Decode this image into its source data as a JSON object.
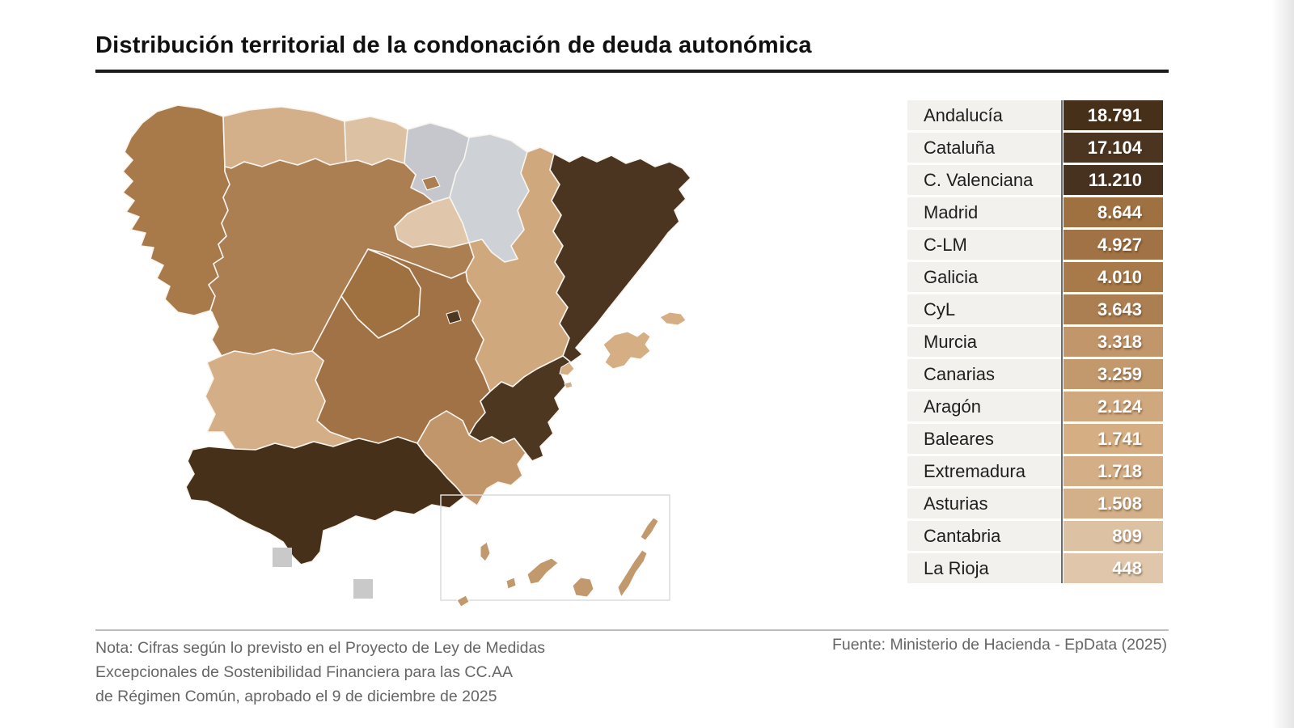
{
  "title": "Distribución territorial de la condonación de deuda autonómica",
  "note_lines": [
    "Nota: Cifras según lo previsto en el Proyecto de Ley de Medidas",
    "Excepcionales de Sostenibilidad Financiera para las CC.AA",
    "de Régimen Común, aprobado el 9 de diciembre de 2025"
  ],
  "source": "Fuente: Ministerio de Hacienda - EpData (2025)",
  "chart_data": {
    "type": "choropleth",
    "title": "Distribución territorial de la condonación de deuda autonómica",
    "legend_position": "table-right",
    "regions": [
      {
        "key": "andalucia",
        "name": "Andalucía",
        "value": "18.791",
        "value_num": 18791,
        "color": "#463019"
      },
      {
        "key": "cataluna",
        "name": "Cataluña",
        "value": "17.104",
        "value_num": 17104,
        "color": "#4b3521"
      },
      {
        "key": "valenciana",
        "name": "C. Valenciana",
        "value": "11.210",
        "value_num": 11210,
        "color": "#473220"
      },
      {
        "key": "madrid",
        "name": "Madrid",
        "value": "8.644",
        "value_num": 8644,
        "color": "#9f7040"
      },
      {
        "key": "clm",
        "name": "C-LM",
        "value": "4.927",
        "value_num": 4927,
        "color": "#a17245"
      },
      {
        "key": "galicia",
        "name": "Galicia",
        "value": "4.010",
        "value_num": 4010,
        "color": "#a87a4a"
      },
      {
        "key": "cyl",
        "name": "CyL",
        "value": "3.643",
        "value_num": 3643,
        "color": "#ac7f52"
      },
      {
        "key": "murcia",
        "name": "Murcia",
        "value": "3.318",
        "value_num": 3318,
        "color": "#c2966b"
      },
      {
        "key": "canarias",
        "name": "Canarias",
        "value": "3.259",
        "value_num": 3259,
        "color": "#c2986d"
      },
      {
        "key": "aragon",
        "name": "Aragón",
        "value": "2.124",
        "value_num": 2124,
        "color": "#d0a87e"
      },
      {
        "key": "baleares",
        "name": "Baleares",
        "value": "1.741",
        "value_num": 1741,
        "color": "#d6ae84"
      },
      {
        "key": "extremadura",
        "name": "Extremadura",
        "value": "1.718",
        "value_num": 1718,
        "color": "#d4ae86"
      },
      {
        "key": "asturias",
        "name": "Asturias",
        "value": "1.508",
        "value_num": 1508,
        "color": "#d3b08a"
      },
      {
        "key": "cantabria",
        "name": "Cantabria",
        "value": "809",
        "value_num": 809,
        "color": "#ddc1a3"
      },
      {
        "key": "rioja",
        "name": "La Rioja",
        "value": "448",
        "value_num": 448,
        "color": "#e0c7ab"
      }
    ],
    "no_data_regions": [
      "País Vasco",
      "Navarra",
      "Ceuta",
      "Melilla"
    ],
    "map_colors": {
      "andalucia": "#463019",
      "cataluna": "#4b3521",
      "valenciana": "#4e3721",
      "madrid": "#9f7040",
      "clm": "#a17245",
      "galicia": "#a87a4a",
      "cyl": "#ac7f52",
      "murcia": "#c2966b",
      "canarias": "#c2986d",
      "aragon": "#d0a87e",
      "baleares": "#d6ae84",
      "extremadura": "#d4ae86",
      "asturias": "#d3b08a",
      "cantabria": "#ddc1a3",
      "rioja": "#e0c7ab",
      "pais_vasco": "#c5c7cc",
      "navarra": "#ced1d6",
      "ceuta": "#c9c9c9",
      "melilla": "#c9c9c9"
    }
  }
}
